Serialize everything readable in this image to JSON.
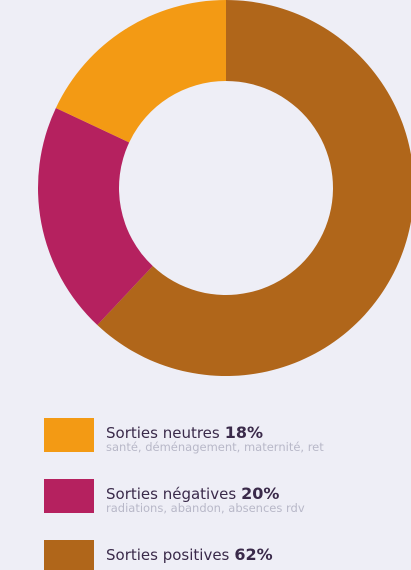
{
  "chart_data": {
    "type": "donut",
    "categories": [
      "Sorties neutres",
      "Sorties négatives",
      "Sorties positives"
    ],
    "values": [
      18,
      20,
      62
    ],
    "value_labels": [
      "18%",
      "20%",
      "62%"
    ],
    "descriptions": [
      "santé, déménagement, maternité, ret",
      "radiations, abandon, absences rdv"
    ],
    "colors": [
      "#f39a14",
      "#b5215f",
      "#b0661a"
    ]
  }
}
